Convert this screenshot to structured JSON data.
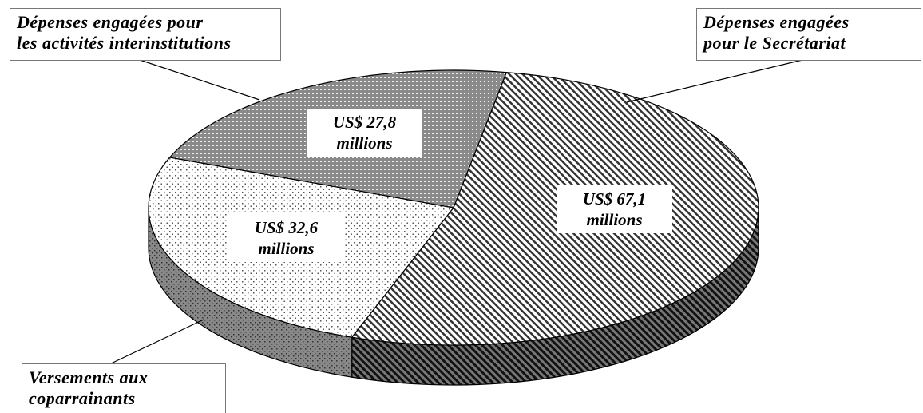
{
  "chart_data": {
    "type": "pie",
    "categories": [
      "Dépenses engagées\npour le Secrétariat",
      "Versements aux\ncoparrainants",
      "Dépenses engagées pour\nles activités interinstitutions"
    ],
    "values": [
      67.1,
      32.6,
      27.8
    ],
    "value_labels": [
      "US$ 67,1\nmillions",
      "US$ 32,6\nmillions",
      "US$ 27,8\nmillions"
    ]
  }
}
